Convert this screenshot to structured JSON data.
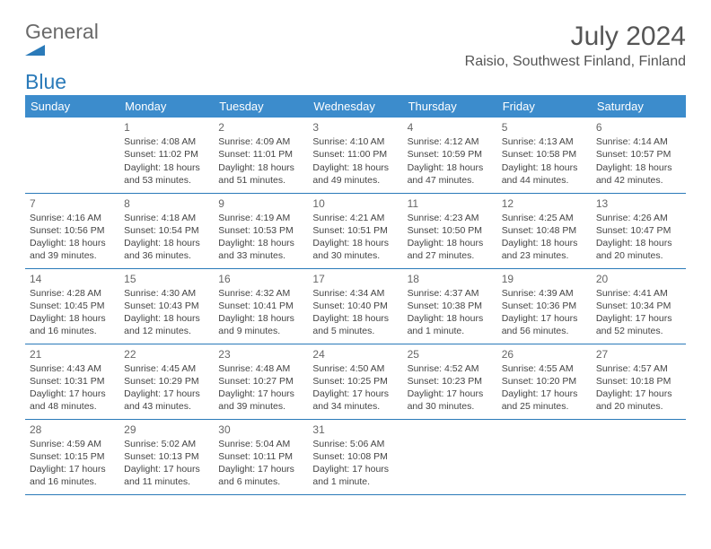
{
  "brand": {
    "word1": "General",
    "word2": "Blue"
  },
  "title": "July 2024",
  "subtitle": "Raisio, Southwest Finland, Finland",
  "colors": {
    "header_bg": "#3c8ccc",
    "rule": "#2a7ab9",
    "text": "#444444",
    "title": "#555555"
  },
  "dayHeaders": [
    "Sunday",
    "Monday",
    "Tuesday",
    "Wednesday",
    "Thursday",
    "Friday",
    "Saturday"
  ],
  "weeks": [
    [
      null,
      {
        "n": "1",
        "sr": "4:08 AM",
        "ss": "11:02 PM",
        "dl": "18 hours and 53 minutes."
      },
      {
        "n": "2",
        "sr": "4:09 AM",
        "ss": "11:01 PM",
        "dl": "18 hours and 51 minutes."
      },
      {
        "n": "3",
        "sr": "4:10 AM",
        "ss": "11:00 PM",
        "dl": "18 hours and 49 minutes."
      },
      {
        "n": "4",
        "sr": "4:12 AM",
        "ss": "10:59 PM",
        "dl": "18 hours and 47 minutes."
      },
      {
        "n": "5",
        "sr": "4:13 AM",
        "ss": "10:58 PM",
        "dl": "18 hours and 44 minutes."
      },
      {
        "n": "6",
        "sr": "4:14 AM",
        "ss": "10:57 PM",
        "dl": "18 hours and 42 minutes."
      }
    ],
    [
      {
        "n": "7",
        "sr": "4:16 AM",
        "ss": "10:56 PM",
        "dl": "18 hours and 39 minutes."
      },
      {
        "n": "8",
        "sr": "4:18 AM",
        "ss": "10:54 PM",
        "dl": "18 hours and 36 minutes."
      },
      {
        "n": "9",
        "sr": "4:19 AM",
        "ss": "10:53 PM",
        "dl": "18 hours and 33 minutes."
      },
      {
        "n": "10",
        "sr": "4:21 AM",
        "ss": "10:51 PM",
        "dl": "18 hours and 30 minutes."
      },
      {
        "n": "11",
        "sr": "4:23 AM",
        "ss": "10:50 PM",
        "dl": "18 hours and 27 minutes."
      },
      {
        "n": "12",
        "sr": "4:25 AM",
        "ss": "10:48 PM",
        "dl": "18 hours and 23 minutes."
      },
      {
        "n": "13",
        "sr": "4:26 AM",
        "ss": "10:47 PM",
        "dl": "18 hours and 20 minutes."
      }
    ],
    [
      {
        "n": "14",
        "sr": "4:28 AM",
        "ss": "10:45 PM",
        "dl": "18 hours and 16 minutes."
      },
      {
        "n": "15",
        "sr": "4:30 AM",
        "ss": "10:43 PM",
        "dl": "18 hours and 12 minutes."
      },
      {
        "n": "16",
        "sr": "4:32 AM",
        "ss": "10:41 PM",
        "dl": "18 hours and 9 minutes."
      },
      {
        "n": "17",
        "sr": "4:34 AM",
        "ss": "10:40 PM",
        "dl": "18 hours and 5 minutes."
      },
      {
        "n": "18",
        "sr": "4:37 AM",
        "ss": "10:38 PM",
        "dl": "18 hours and 1 minute."
      },
      {
        "n": "19",
        "sr": "4:39 AM",
        "ss": "10:36 PM",
        "dl": "17 hours and 56 minutes."
      },
      {
        "n": "20",
        "sr": "4:41 AM",
        "ss": "10:34 PM",
        "dl": "17 hours and 52 minutes."
      }
    ],
    [
      {
        "n": "21",
        "sr": "4:43 AM",
        "ss": "10:31 PM",
        "dl": "17 hours and 48 minutes."
      },
      {
        "n": "22",
        "sr": "4:45 AM",
        "ss": "10:29 PM",
        "dl": "17 hours and 43 minutes."
      },
      {
        "n": "23",
        "sr": "4:48 AM",
        "ss": "10:27 PM",
        "dl": "17 hours and 39 minutes."
      },
      {
        "n": "24",
        "sr": "4:50 AM",
        "ss": "10:25 PM",
        "dl": "17 hours and 34 minutes."
      },
      {
        "n": "25",
        "sr": "4:52 AM",
        "ss": "10:23 PM",
        "dl": "17 hours and 30 minutes."
      },
      {
        "n": "26",
        "sr": "4:55 AM",
        "ss": "10:20 PM",
        "dl": "17 hours and 25 minutes."
      },
      {
        "n": "27",
        "sr": "4:57 AM",
        "ss": "10:18 PM",
        "dl": "17 hours and 20 minutes."
      }
    ],
    [
      {
        "n": "28",
        "sr": "4:59 AM",
        "ss": "10:15 PM",
        "dl": "17 hours and 16 minutes."
      },
      {
        "n": "29",
        "sr": "5:02 AM",
        "ss": "10:13 PM",
        "dl": "17 hours and 11 minutes."
      },
      {
        "n": "30",
        "sr": "5:04 AM",
        "ss": "10:11 PM",
        "dl": "17 hours and 6 minutes."
      },
      {
        "n": "31",
        "sr": "5:06 AM",
        "ss": "10:08 PM",
        "dl": "17 hours and 1 minute."
      },
      null,
      null,
      null
    ]
  ],
  "labels": {
    "sunrise": "Sunrise:",
    "sunset": "Sunset:",
    "daylight": "Daylight:"
  }
}
